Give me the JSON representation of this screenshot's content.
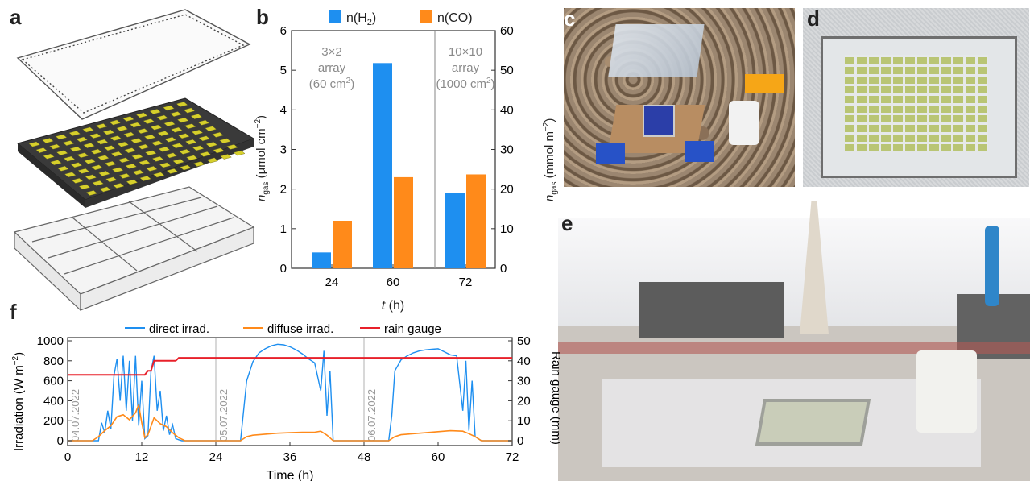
{
  "panels": {
    "a": "a",
    "b": "b",
    "c": "c",
    "d": "d",
    "e": "e",
    "f": "f"
  },
  "colors": {
    "h2": "#1E8FF0",
    "co": "#FF8A1A",
    "rain": "#E8202A",
    "gray": "#9a9a9a"
  },
  "chart_b": {
    "type": "bar",
    "legend": {
      "h2": "n(H",
      "h2_sub": "2",
      "h2_end": ")",
      "co": "n(CO)"
    },
    "categories": [
      "24",
      "60",
      "72"
    ],
    "series": [
      {
        "name": "n(H2)",
        "values": [
          0.4,
          5.18,
          1.9
        ]
      },
      {
        "name": "n(CO)",
        "values": [
          1.2,
          2.3,
          2.37
        ]
      }
    ],
    "ylim_left": [
      0,
      6
    ],
    "ylim_right": [
      0,
      60
    ],
    "yticks_left": [
      "0",
      "1",
      "2",
      "3",
      "4",
      "5",
      "6"
    ],
    "yticks_right": [
      "0",
      "10",
      "20",
      "30",
      "40",
      "50",
      "60"
    ],
    "ylabel_left": {
      "main": "n",
      "sub": "gas",
      "units": " (µmol cm",
      "sup": "−2",
      "close": ")"
    },
    "ylabel_right": {
      "main": "n",
      "sub": "gas",
      "units": " (mmol m",
      "sup": "−2",
      "close": ")"
    },
    "xlabel": {
      "main": "t",
      "units": " (h)"
    },
    "annotations": {
      "left": {
        "line1": "3×2",
        "line2": "array",
        "line3": "(60 cm",
        "sup": "2",
        "close": ")"
      },
      "right": {
        "line1": "10×10",
        "line2": "array",
        "line3": "(1000 cm",
        "sup": "2",
        "close": ")"
      }
    }
  },
  "chart_f": {
    "type": "line",
    "legend": {
      "direct": "direct irrad.",
      "diffuse": "diffuse irrad.",
      "rain": "rain gauge"
    },
    "xticks": [
      "0",
      "12",
      "24",
      "36",
      "48",
      "60",
      "72"
    ],
    "xlim": [
      0,
      72
    ],
    "ylim_left": [
      0,
      1000
    ],
    "ylim_right": [
      0,
      50
    ],
    "yticks_left": [
      "0",
      "200",
      "400",
      "600",
      "800",
      "1000"
    ],
    "yticks_right": [
      "0",
      "10",
      "20",
      "30",
      "40",
      "50"
    ],
    "ylabel_left": {
      "main": "Irradiation (W m",
      "sup": "−2",
      "close": ")"
    },
    "ylabel_right": "Rain gauge (mm)",
    "xlabel": "Time (h)",
    "date_labels": [
      "04.07.2022",
      "05.07.2022",
      "06.07.2022"
    ],
    "direct_irrad": {
      "x": [
        0,
        5,
        5.5,
        6,
        6.5,
        7,
        7.5,
        8,
        8.5,
        9,
        9.5,
        10,
        10.5,
        11,
        11.5,
        12,
        12.5,
        13,
        13.5,
        14,
        14.5,
        15,
        15.5,
        16,
        16.5,
        17,
        17.5,
        18,
        18.5,
        28,
        28.5,
        29,
        30,
        31,
        32,
        33,
        34,
        35,
        36,
        37,
        38,
        39,
        40,
        41,
        41.5,
        42,
        42.5,
        43,
        52,
        52.5,
        53,
        54,
        55,
        56,
        57,
        58,
        59,
        60,
        61,
        62,
        63,
        64,
        64.5,
        65,
        65.5,
        66,
        67,
        72
      ],
      "y": [
        0,
        0,
        180,
        80,
        300,
        120,
        650,
        820,
        400,
        850,
        300,
        800,
        200,
        850,
        150,
        600,
        20,
        50,
        700,
        850,
        300,
        500,
        100,
        250,
        60,
        160,
        20,
        10,
        0,
        0,
        300,
        600,
        790,
        880,
        920,
        950,
        965,
        960,
        940,
        910,
        870,
        820,
        780,
        500,
        900,
        250,
        700,
        0,
        0,
        250,
        700,
        810,
        850,
        880,
        900,
        910,
        915,
        920,
        890,
        860,
        850,
        300,
        800,
        100,
        600,
        40,
        0,
        0
      ]
    },
    "diffuse_irrad": {
      "x": [
        0,
        4,
        5,
        6,
        7,
        8,
        9,
        10,
        11,
        11.5,
        12,
        12.5,
        13,
        14,
        15,
        16,
        17,
        18,
        19,
        28,
        29,
        30,
        32,
        34,
        36,
        38,
        40,
        41,
        42,
        43,
        52,
        53,
        54,
        56,
        58,
        60,
        62,
        64,
        65,
        66,
        67,
        72
      ],
      "y": [
        0,
        0,
        40,
        100,
        150,
        240,
        260,
        210,
        280,
        360,
        180,
        30,
        60,
        230,
        170,
        140,
        80,
        30,
        0,
        0,
        40,
        55,
        65,
        75,
        80,
        85,
        85,
        95,
        55,
        0,
        0,
        40,
        60,
        70,
        80,
        90,
        100,
        95,
        70,
        40,
        0,
        0
      ]
    },
    "rain_gauge": {
      "x": [
        0,
        12.5,
        13,
        13.5,
        14,
        17.5,
        18,
        72
      ],
      "y": [
        33,
        33,
        35,
        35,
        40,
        40,
        41.5,
        41.5
      ]
    }
  }
}
